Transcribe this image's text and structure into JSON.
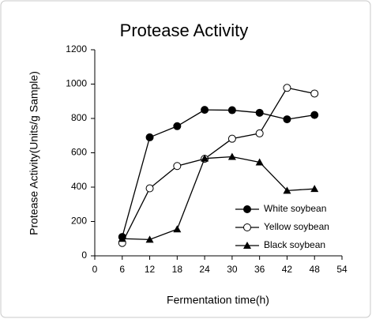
{
  "chart_data": {
    "type": "line",
    "title": "Protease Activity",
    "x_label": "Fermentation time(h)",
    "y_label": "Protease Activity(Units/g Sample)",
    "x": [
      6,
      12,
      18,
      24,
      30,
      36,
      42,
      48
    ],
    "series": [
      {
        "name": "White soybean",
        "color": "#000000",
        "marker": "filled-circle",
        "values": [
          110,
          690,
          755,
          850,
          848,
          833,
          795,
          820
        ]
      },
      {
        "name": "Yellow soybean",
        "color": "#000000",
        "marker": "open-circle",
        "values": [
          75,
          393,
          523,
          565,
          682,
          713,
          978,
          945
        ]
      },
      {
        "name": "Black soybean",
        "color": "#000000",
        "marker": "filled-triangle",
        "values": [
          100,
          95,
          155,
          567,
          577,
          545,
          380,
          390
        ]
      }
    ],
    "xlim": [
      0,
      54
    ],
    "xticks": [
      0,
      6,
      12,
      18,
      24,
      30,
      36,
      42,
      48,
      54
    ],
    "ylim": [
      0,
      1200
    ],
    "yticks": [
      0,
      200,
      400,
      600,
      800,
      1000,
      1200
    ],
    "legend": "lower right"
  }
}
